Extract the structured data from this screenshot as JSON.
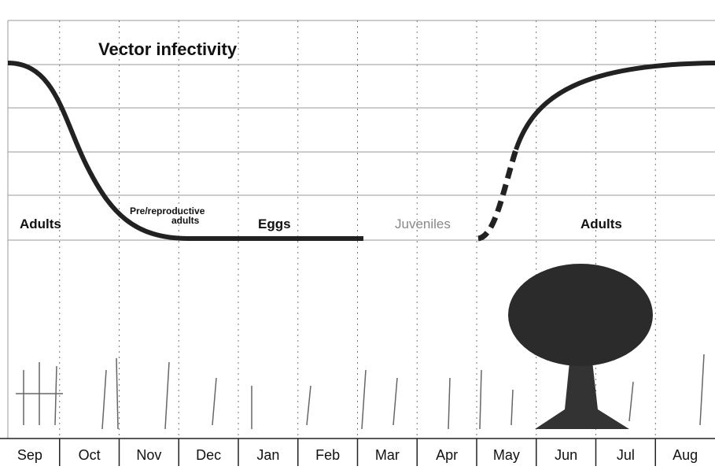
{
  "title": "Vector infectivity",
  "stages": [
    "Adults",
    "Pre/reproductive",
    "adults",
    "Eggs",
    "Juveniles",
    "Adults"
  ],
  "months": [
    "Sep",
    "Oct",
    "Nov",
    "Dec",
    "Jan",
    "Feb",
    "Mar",
    "Apr",
    "May",
    "Jun",
    "Jul",
    "Aug"
  ]
}
